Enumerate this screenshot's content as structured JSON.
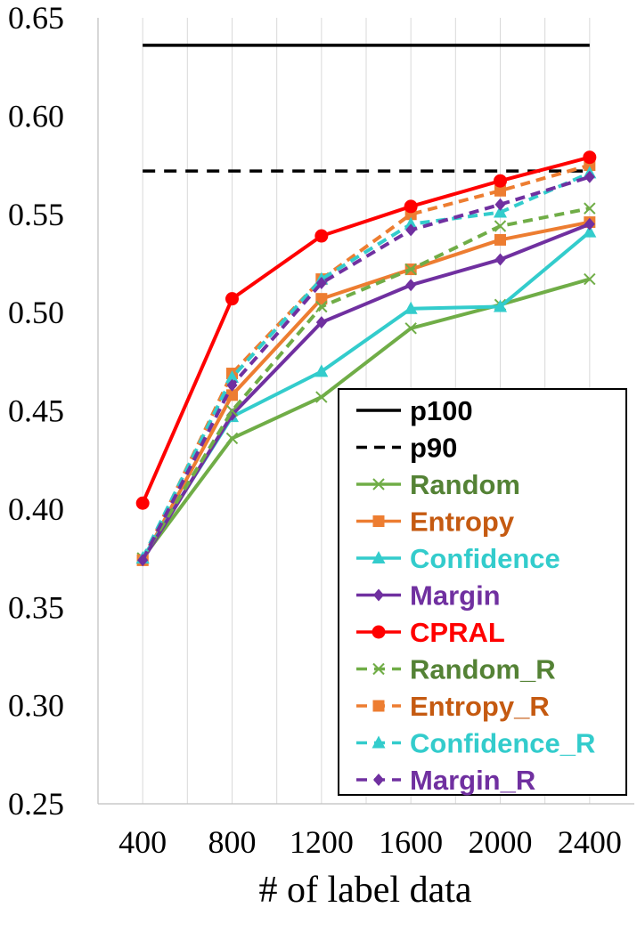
{
  "chart_data": {
    "type": "line",
    "title": "",
    "xlabel": "# of label data",
    "ylabel": "",
    "x": [
      400,
      800,
      1200,
      1600,
      2000,
      2400
    ],
    "x_tick_labels": [
      "400",
      "800",
      "1200",
      "1600",
      "2000",
      "2400"
    ],
    "ylim": [
      0.25,
      0.65
    ],
    "y_ticks": [
      0.25,
      0.3,
      0.35,
      0.4,
      0.45,
      0.5,
      0.55,
      0.6,
      0.65
    ],
    "y_tick_labels": [
      "0.25",
      "0.30",
      "0.35",
      "0.40",
      "0.45",
      "0.50",
      "0.55",
      "0.60",
      "0.65"
    ],
    "grid": "vertical",
    "legend_position": "bottom-right",
    "series": [
      {
        "name": "p100",
        "values": [
          0.636,
          0.636,
          0.636,
          0.636,
          0.636,
          0.636
        ],
        "color": "#000000",
        "dash": "solid",
        "marker": "none"
      },
      {
        "name": "p90",
        "values": [
          0.572,
          0.572,
          0.572,
          0.572,
          0.572,
          0.572
        ],
        "color": "#000000",
        "dash": "dashed",
        "marker": "none"
      },
      {
        "name": "Random",
        "values": [
          0.375,
          0.436,
          0.457,
          0.492,
          0.504,
          0.517
        ],
        "color": "#70AD47",
        "dash": "solid",
        "marker": "x"
      },
      {
        "name": "Entropy",
        "values": [
          0.374,
          0.458,
          0.507,
          0.522,
          0.537,
          0.546
        ],
        "color": "#ED7D31",
        "dash": "solid",
        "marker": "square"
      },
      {
        "name": "Confidence",
        "values": [
          0.375,
          0.447,
          0.47,
          0.502,
          0.503,
          0.541
        ],
        "color": "#33CCCC",
        "dash": "solid",
        "marker": "triangle"
      },
      {
        "name": "Margin",
        "values": [
          0.374,
          0.448,
          0.495,
          0.514,
          0.527,
          0.545
        ],
        "color": "#7030A0",
        "dash": "solid",
        "marker": "diamond"
      },
      {
        "name": "CPRAL",
        "values": [
          0.403,
          0.507,
          0.539,
          0.554,
          0.567,
          0.579
        ],
        "color": "#FF0000",
        "dash": "solid",
        "marker": "circle"
      },
      {
        "name": "Random_R",
        "values": [
          0.375,
          0.45,
          0.503,
          0.522,
          0.544,
          0.553
        ],
        "color": "#70AD47",
        "dash": "dashed",
        "marker": "x"
      },
      {
        "name": "Entropy_R",
        "values": [
          0.374,
          0.469,
          0.517,
          0.55,
          0.562,
          0.575
        ],
        "color": "#ED7D31",
        "dash": "dashed",
        "marker": "square"
      },
      {
        "name": "Confidence_R",
        "values": [
          0.375,
          0.467,
          0.517,
          0.545,
          0.551,
          0.571
        ],
        "color": "#33CCCC",
        "dash": "dashed",
        "marker": "triangle"
      },
      {
        "name": "Margin_R",
        "values": [
          0.374,
          0.463,
          0.515,
          0.542,
          0.555,
          0.569
        ],
        "color": "#7030A0",
        "dash": "dashed",
        "marker": "diamond"
      }
    ],
    "legend_text_colors": {
      "p100": "#000000",
      "p90": "#000000",
      "Random": "#548235",
      "Entropy": "#C55A11",
      "Confidence": "#33CCCC",
      "Margin": "#7030A0",
      "CPRAL": "#FF0000",
      "Random_R": "#548235",
      "Entropy_R": "#C55A11",
      "Confidence_R": "#33CCCC",
      "Margin_R": "#7030A0"
    }
  }
}
